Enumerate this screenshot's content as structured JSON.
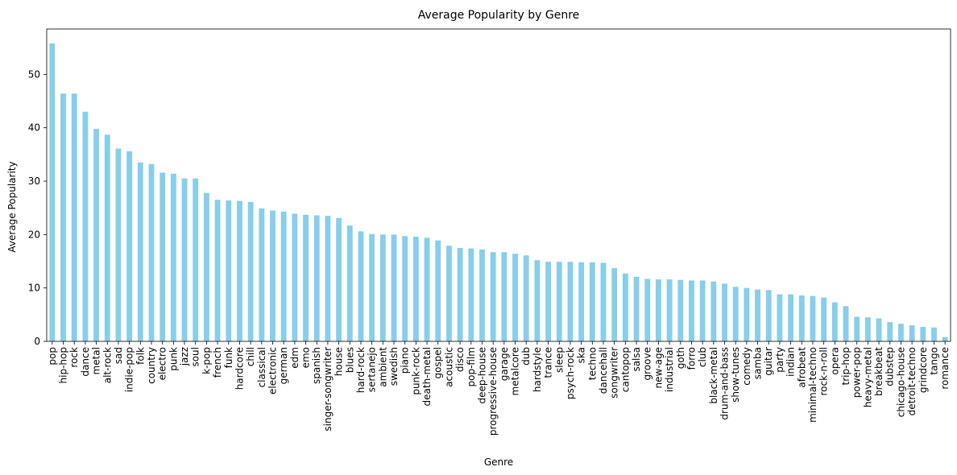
{
  "chart_data": {
    "type": "bar",
    "title": "Average Popularity by Genre",
    "xlabel": "Genre",
    "ylabel": "Average Popularity",
    "ylim": [
      0,
      58.5
    ],
    "yticks": [
      0,
      10,
      20,
      30,
      40,
      50
    ],
    "bar_color": "#87CEEB",
    "grid": false,
    "categories": [
      "pop",
      "hip-hop",
      "rock",
      "dance",
      "metal",
      "alt-rock",
      "sad",
      "indie-pop",
      "folk",
      "country",
      "electro",
      "punk",
      "jazz",
      "soul",
      "k-pop",
      "french",
      "funk",
      "hardcore",
      "chill",
      "classical",
      "electronic",
      "german",
      "edm",
      "emo",
      "spanish",
      "singer-songwriter",
      "house",
      "blues",
      "hard-rock",
      "sertanejo",
      "ambient",
      "swedish",
      "piano",
      "punk-rock",
      "death-metal",
      "gospel",
      "acoustic",
      "disco",
      "pop-film",
      "deep-house",
      "progressive-house",
      "garage",
      "metalcore",
      "dub",
      "hardstyle",
      "trance",
      "sleep",
      "psych-rock",
      "ska",
      "techno",
      "dancehall",
      "songwriter",
      "cantopop",
      "salsa",
      "groove",
      "new-age",
      "industrial",
      "goth",
      "forro",
      "club",
      "black-metal",
      "drum-and-bass",
      "show-tunes",
      "comedy",
      "samba",
      "guitar",
      "party",
      "indian",
      "afrobeat",
      "minimal-techno",
      "rock-n-roll",
      "opera",
      "trip-hop",
      "power-pop",
      "heavy-metal",
      "breakbeat",
      "dubstep",
      "chicago-house",
      "detroit-techno",
      "grindcore",
      "tango",
      "romance"
    ],
    "values": [
      55.8,
      46.4,
      46.4,
      43.0,
      39.8,
      38.7,
      36.1,
      35.6,
      33.5,
      33.2,
      31.6,
      31.4,
      30.5,
      30.5,
      27.8,
      26.5,
      26.4,
      26.3,
      26.1,
      24.9,
      24.5,
      24.3,
      23.9,
      23.7,
      23.6,
      23.5,
      23.1,
      21.7,
      20.6,
      20.1,
      20.0,
      20.0,
      19.7,
      19.6,
      19.4,
      18.9,
      17.9,
      17.5,
      17.4,
      17.2,
      16.7,
      16.7,
      16.4,
      16.1,
      15.2,
      14.9,
      14.9,
      14.9,
      14.8,
      14.8,
      14.7,
      13.7,
      12.7,
      12.1,
      11.7,
      11.6,
      11.6,
      11.5,
      11.4,
      11.4,
      11.2,
      10.8,
      10.2,
      10.0,
      9.7,
      9.6,
      8.8,
      8.8,
      8.6,
      8.5,
      8.2,
      7.3,
      6.6,
      4.6,
      4.5,
      4.3,
      3.6,
      3.3,
      3.0,
      2.7,
      2.6,
      0.8
    ]
  }
}
